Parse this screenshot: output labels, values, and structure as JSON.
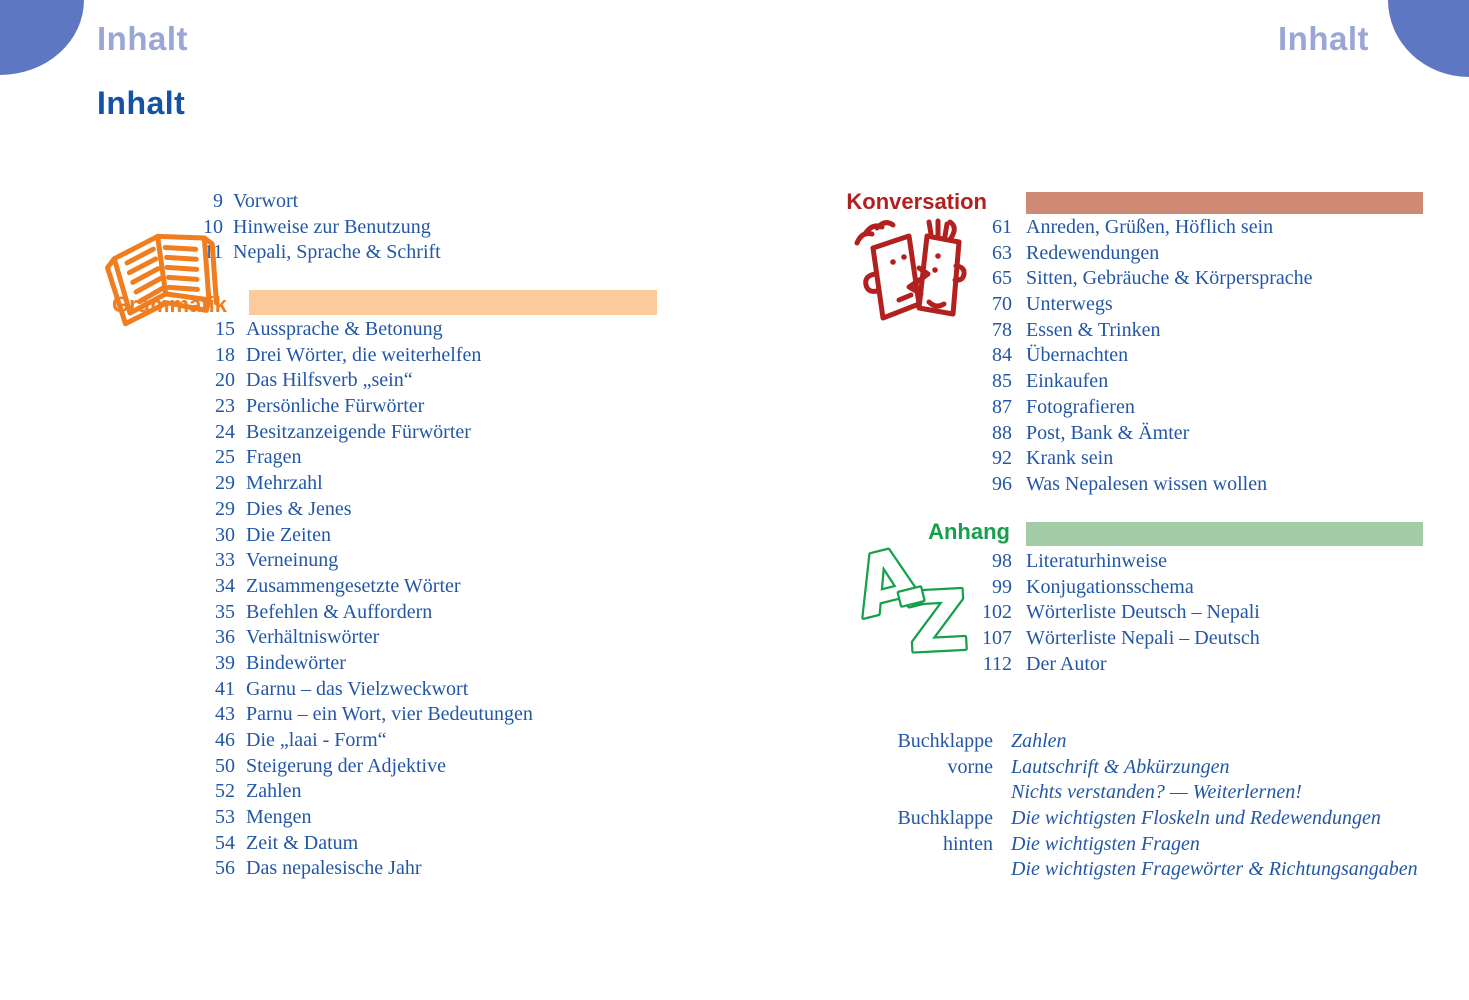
{
  "page": {
    "running_header_left": "Inhalt",
    "running_header_right": "Inhalt",
    "title": "Inhalt"
  },
  "colors": {
    "corner": "#5e77c2",
    "header_light": "#9aa6d5",
    "title_blue": "#1551a5",
    "toc_blue": "#2357a6",
    "orange": "#f07d20",
    "orange_bar": "#fccb9b",
    "red": "#b2211f",
    "red_bar": "#ce8a74",
    "green": "#15a04b",
    "green_bar": "#a3cca6"
  },
  "front_matter": {
    "items": [
      {
        "page": "9",
        "title": "Vorwort"
      },
      {
        "page": "10",
        "title": "Hinweise zur Benutzung"
      },
      {
        "page": "11",
        "title": "Nepali, Sprache & Schrift"
      }
    ]
  },
  "sections": {
    "grammatik": {
      "label": "Grammatik",
      "icon": "open-book-icon",
      "items": [
        {
          "page": "15",
          "title": "Aussprache & Betonung"
        },
        {
          "page": "18",
          "title": "Drei Wörter, die weiterhelfen"
        },
        {
          "page": "20",
          "title": "Das Hilfsverb „sein“"
        },
        {
          "page": "23",
          "title": "Persönliche Fürwörter"
        },
        {
          "page": "24",
          "title": "Besitzanzeigende Fürwörter"
        },
        {
          "page": "25",
          "title": "Fragen"
        },
        {
          "page": "29",
          "title": "Mehrzahl"
        },
        {
          "page": "29",
          "title": "Dies & Jenes"
        },
        {
          "page": "30",
          "title": "Die Zeiten"
        },
        {
          "page": "33",
          "title": "Verneinung"
        },
        {
          "page": "34",
          "title": "Zusammengesetzte Wörter"
        },
        {
          "page": "35",
          "title": "Befehlen & Auffordern"
        },
        {
          "page": "36",
          "title": "Verhältniswörter"
        },
        {
          "page": "39",
          "title": "Bindewörter"
        },
        {
          "page": "41",
          "title": "Garnu – das Vielzweckwort"
        },
        {
          "page": "43",
          "title": "Parnu – ein Wort, vier Bedeutungen"
        },
        {
          "page": "46",
          "title": "Die „laai - Form“"
        },
        {
          "page": "50",
          "title": "Steigerung der Adjektive"
        },
        {
          "page": "52",
          "title": "Zahlen"
        },
        {
          "page": "53",
          "title": "Mengen"
        },
        {
          "page": "54",
          "title": "Zeit & Datum"
        },
        {
          "page": "56",
          "title": "Das nepalesische Jahr"
        }
      ]
    },
    "konversation": {
      "label": "Konversation",
      "icon": "talking-faces-icon",
      "items": [
        {
          "page": "61",
          "title": "Anreden, Grüßen, Höflich sein"
        },
        {
          "page": "63",
          "title": "Redewendungen"
        },
        {
          "page": "65",
          "title": "Sitten, Gebräuche & Körpersprache"
        },
        {
          "page": "70",
          "title": "Unterwegs"
        },
        {
          "page": "78",
          "title": "Essen & Trinken"
        },
        {
          "page": "84",
          "title": "Übernachten"
        },
        {
          "page": "85",
          "title": "Einkaufen"
        },
        {
          "page": "87",
          "title": "Fotografieren"
        },
        {
          "page": "88",
          "title": "Post, Bank & Ämter"
        },
        {
          "page": "92",
          "title": "Krank sein"
        },
        {
          "page": "96",
          "title": "Was Nepalesen wissen wollen"
        }
      ]
    },
    "anhang": {
      "label": "Anhang",
      "icon": "a-to-z-icon",
      "items": [
        {
          "page": "98",
          "title": "Literaturhinweise"
        },
        {
          "page": "99",
          "title": "Konjugationsschema"
        },
        {
          "page": "102",
          "title": "Wörterliste Deutsch – Nepali"
        },
        {
          "page": "107",
          "title": "Wörterliste Nepali – Deutsch"
        },
        {
          "page": "112",
          "title": "Der Autor"
        }
      ]
    }
  },
  "buchklappe": {
    "rows": [
      {
        "label": "Buchklappe",
        "entry": "Zahlen"
      },
      {
        "label": "vorne",
        "entry": "Lautschrift & Abkürzungen"
      },
      {
        "label": "",
        "entry": "Nichts verstanden? — Weiterlernen!"
      },
      {
        "label": "Buchklappe",
        "entry": "Die wichtigsten Floskeln und Redewendungen"
      },
      {
        "label": "hinten",
        "entry": "Die wichtigsten Fragen"
      },
      {
        "label": "",
        "entry": "Die wichtigsten Fragewörter & Richtungsangaben"
      }
    ]
  }
}
